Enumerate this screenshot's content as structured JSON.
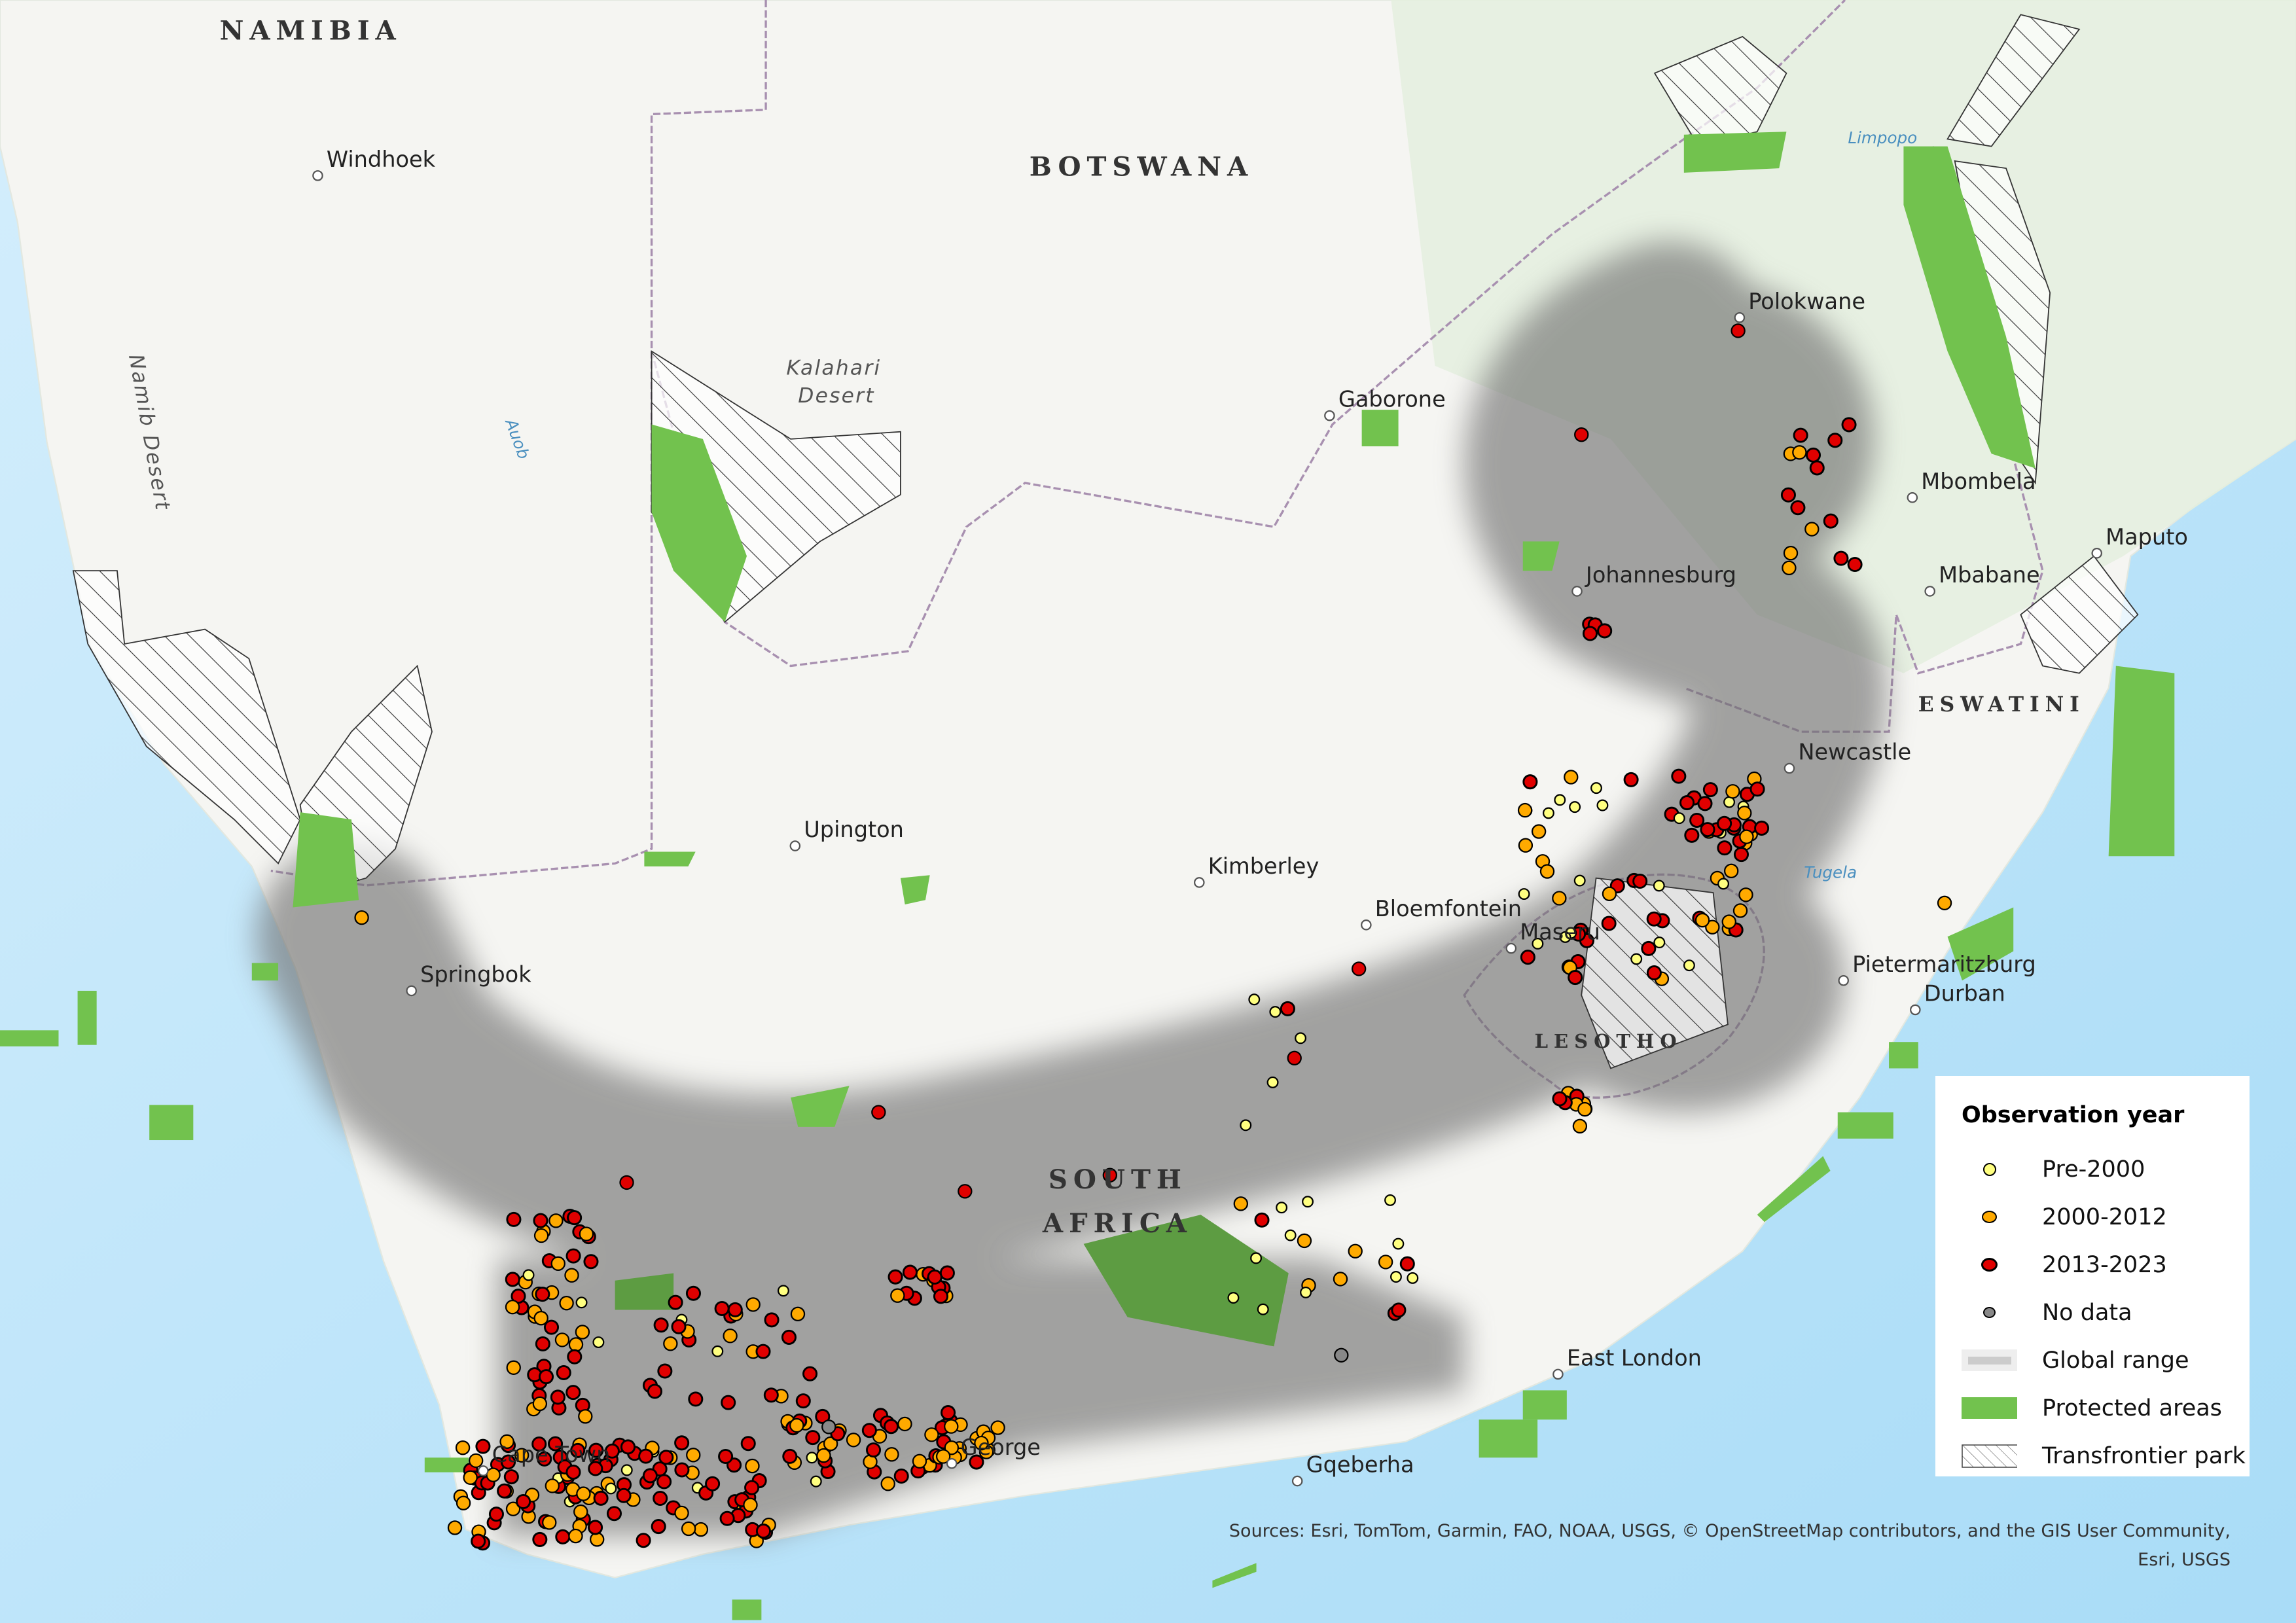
{
  "countries": {
    "namibia": "NAMIBIA",
    "botswana": "BOTSWANA",
    "south_africa_1": "SOUTH",
    "south_africa_2": "AFRICA",
    "lesotho": "LESOTHO",
    "eswatini": "ESWATINI"
  },
  "cities": [
    "Windhoek",
    "Gaborone",
    "Polokwane",
    "Mbombela",
    "Maputo",
    "Johannesburg",
    "Mbabane",
    "Newcastle",
    "Upington",
    "Kimberley",
    "Bloemfontein",
    "Maseru",
    "Pietermaritzburg",
    "Durban",
    "Springbok",
    "East London",
    "Gqeberha",
    "Cape Town",
    "George"
  ],
  "water": {
    "limpopo": "Limpopo",
    "auob": "Auob",
    "tugela": "Tugela"
  },
  "deserts": {
    "kalahari_1": "Kalahari",
    "kalahari_2": "Desert",
    "namib": "Namib Desert"
  },
  "legend": {
    "title": "Observation year",
    "items": [
      {
        "label": "Pre-2000",
        "color": "#ffff80"
      },
      {
        "label": "2000-2012",
        "color": "#ffaa00"
      },
      {
        "label": "2013-2023",
        "color": "#e00000"
      },
      {
        "label": "No data",
        "color": "#888888"
      },
      {
        "label": "Global range",
        "color": "#bbbbbb"
      },
      {
        "label": "Protected areas",
        "color": "#72c24e"
      },
      {
        "label": "Transfrontier park",
        "color": "#ffffff"
      }
    ]
  },
  "attribution": {
    "line1": "Sources: Esri, TomTom, Garmin, FAO, NOAA, USGS, © OpenStreetMap contributors, and the GIS User Community,",
    "line2": "Esri, USGS"
  }
}
